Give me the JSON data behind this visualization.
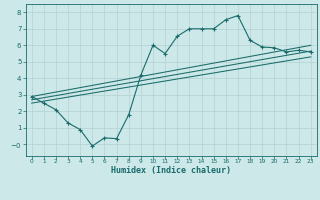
{
  "xlabel": "Humidex (Indice chaleur)",
  "ylabel": "",
  "background_color": "#cce8e8",
  "grid_color": "#b8d4d4",
  "line_color": "#1a6b6b",
  "xlim": [
    -0.5,
    23.5
  ],
  "ylim": [
    -0.7,
    8.5
  ],
  "xticks": [
    0,
    1,
    2,
    3,
    4,
    5,
    6,
    7,
    8,
    9,
    10,
    11,
    12,
    13,
    14,
    15,
    16,
    17,
    18,
    19,
    20,
    21,
    22,
    23
  ],
  "yticks": [
    0,
    1,
    2,
    3,
    4,
    5,
    6,
    7,
    8
  ],
  "main_x": [
    0,
    1,
    2,
    3,
    4,
    5,
    6,
    7,
    8,
    9,
    10,
    11,
    12,
    13,
    14,
    15,
    16,
    17,
    18,
    19,
    20,
    21,
    22,
    23
  ],
  "main_y": [
    2.9,
    2.5,
    2.1,
    1.3,
    0.9,
    -0.1,
    0.4,
    0.35,
    1.8,
    4.2,
    6.0,
    5.5,
    6.55,
    7.0,
    7.0,
    7.0,
    7.55,
    7.8,
    6.3,
    5.9,
    5.85,
    5.6,
    5.7,
    5.6
  ],
  "line1_x": [
    0,
    23
  ],
  "line1_y": [
    2.9,
    6.0
  ],
  "line2_x": [
    0,
    23
  ],
  "line2_y": [
    2.7,
    5.65
  ],
  "line3_x": [
    0,
    23
  ],
  "line3_y": [
    2.5,
    5.3
  ]
}
